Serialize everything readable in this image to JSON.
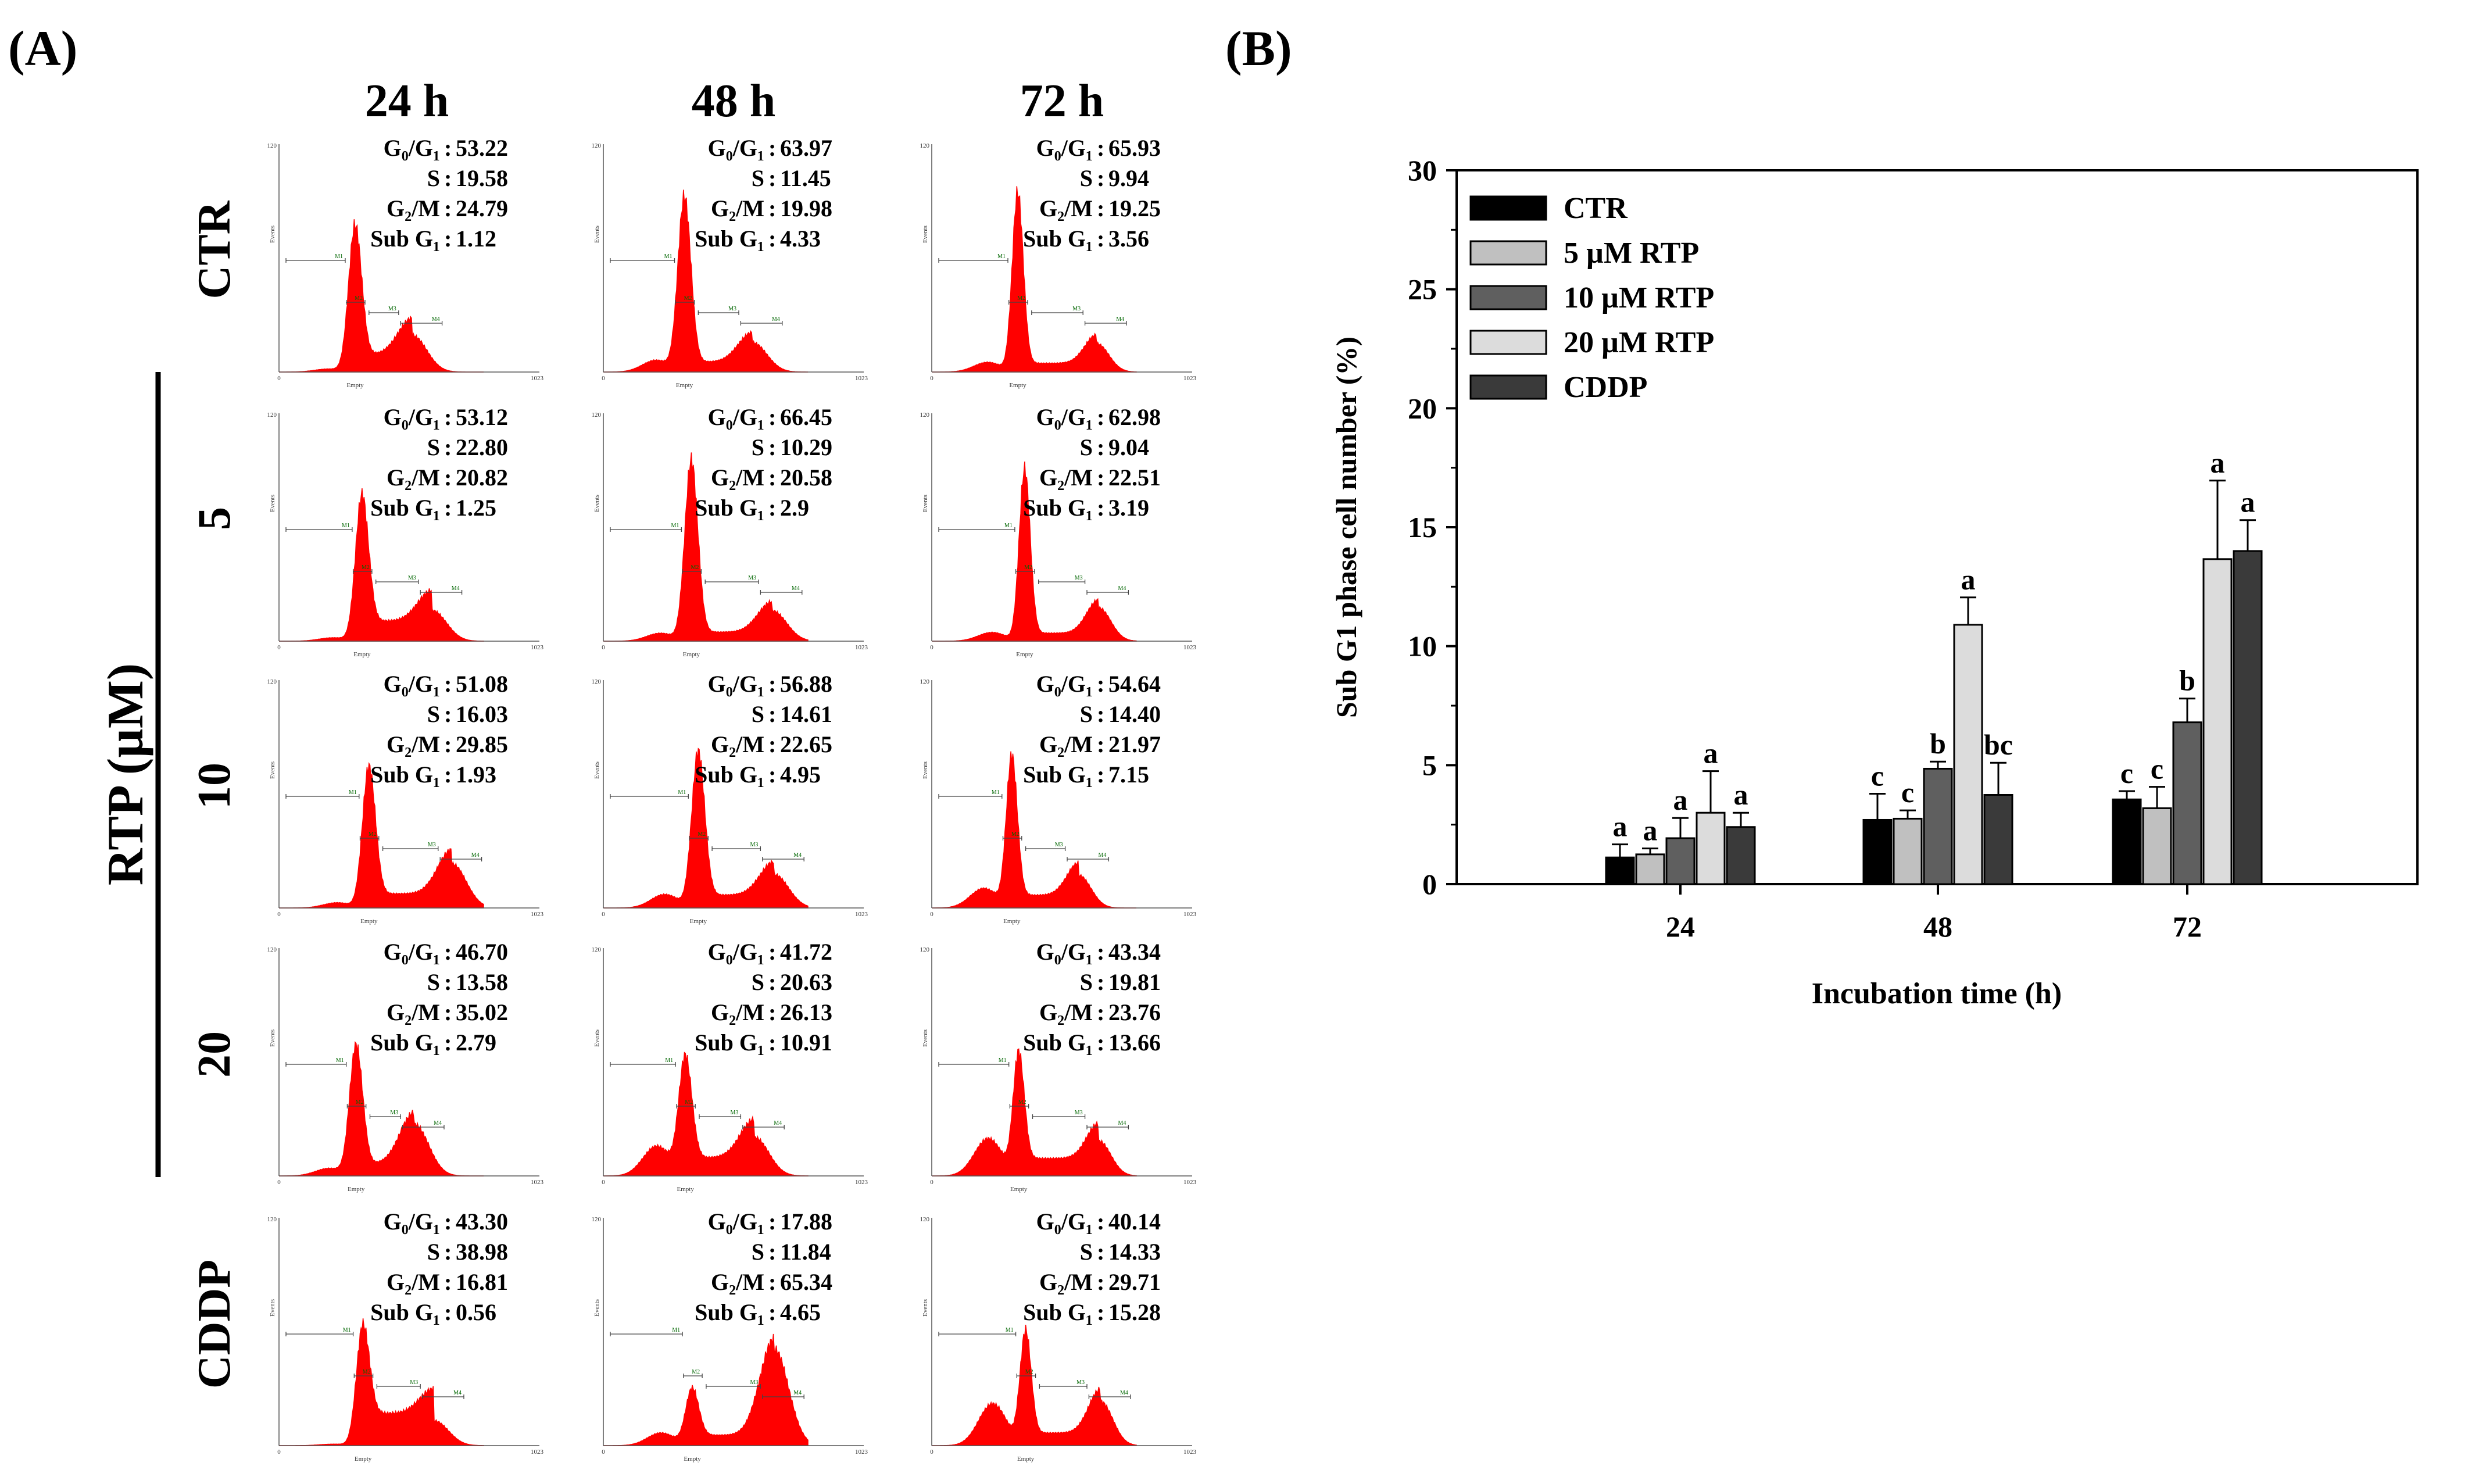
{
  "panel_a": {
    "label": "(A)",
    "col_headers": [
      "24 h",
      "48 h",
      "72 h"
    ],
    "row_labels": [
      "CTR",
      "5",
      "10",
      "20",
      "CDDP"
    ],
    "group_label": "RTP (µM)",
    "axis_y_top": "120",
    "axis_y_label": "Events",
    "axis_x_min": "0",
    "axis_x_max": "1023",
    "axis_x_label": "Empty",
    "markers": [
      "M1",
      "M2",
      "M3",
      "M4"
    ],
    "stat_labels": [
      "G₀/G₁",
      "S",
      "G₂/M",
      "Sub G₁"
    ],
    "separator": " : ",
    "stats": [
      [
        [
          "53.22",
          "19.58",
          "24.79",
          "1.12"
        ],
        [
          "63.97",
          "11.45",
          "19.98",
          "4.33"
        ],
        [
          "65.93",
          "9.94",
          "19.25",
          "3.56"
        ]
      ],
      [
        [
          "53.12",
          "22.80",
          "20.82",
          "1.25"
        ],
        [
          "66.45",
          "10.29",
          "20.58",
          "2.9"
        ],
        [
          "62.98",
          "9.04",
          "22.51",
          "3.19"
        ]
      ],
      [
        [
          "51.08",
          "16.03",
          "29.85",
          "1.93"
        ],
        [
          "56.88",
          "14.61",
          "22.65",
          "4.95"
        ],
        [
          "54.64",
          "14.40",
          "21.97",
          "7.15"
        ]
      ],
      [
        [
          "46.70",
          "13.58",
          "35.02",
          "2.79"
        ],
        [
          "41.72",
          "20.63",
          "26.13",
          "10.91"
        ],
        [
          "43.34",
          "19.81",
          "23.76",
          "13.66"
        ]
      ],
      [
        [
          "43.30",
          "38.98",
          "16.81",
          "0.56"
        ],
        [
          "17.88",
          "11.84",
          "65.34",
          "4.65"
        ],
        [
          "40.14",
          "14.33",
          "29.71",
          "15.28"
        ]
      ]
    ],
    "histogram_color": "#ff0000"
  },
  "chart_data": {
    "type": "bar",
    "panel_label": "(B)",
    "title": "",
    "xlabel": "Incubation time (h)",
    "ylabel": "Sub G1 phase cell number (%)",
    "ylim": [
      0,
      30
    ],
    "yticks": [
      "0",
      "5",
      "10",
      "15",
      "20",
      "25",
      "30"
    ],
    "categories": [
      "24",
      "48",
      "72"
    ],
    "legend_position": "top-left",
    "series": [
      {
        "name": "CTR",
        "color": "#000000",
        "values": [
          1.12,
          2.7,
          3.56
        ],
        "errors": [
          0.55,
          1.1,
          0.35
        ],
        "letters": [
          "a",
          "c",
          "c"
        ]
      },
      {
        "name": "5 µM RTP",
        "color": "#c0c0c0",
        "values": [
          1.25,
          2.75,
          3.19
        ],
        "errors": [
          0.25,
          0.35,
          0.9
        ],
        "letters": [
          "a",
          "c",
          "c"
        ]
      },
      {
        "name": "10 µM RTP",
        "color": "#5f5f5f",
        "values": [
          1.93,
          4.85,
          6.8
        ],
        "errors": [
          0.85,
          0.3,
          1.0
        ],
        "letters": [
          "a",
          "b",
          "b"
        ]
      },
      {
        "name": "20 µM RTP",
        "color": "#dcdcdc",
        "values": [
          3.0,
          10.9,
          13.66
        ],
        "errors": [
          1.75,
          1.15,
          3.3
        ],
        "letters": [
          "a",
          "a",
          "a"
        ]
      },
      {
        "name": "CDDP",
        "color": "#3a3a3a",
        "values": [
          2.4,
          3.75,
          14.0
        ],
        "errors": [
          0.6,
          1.35,
          1.3
        ],
        "letters": [
          "a",
          "bc",
          "a"
        ]
      }
    ]
  }
}
